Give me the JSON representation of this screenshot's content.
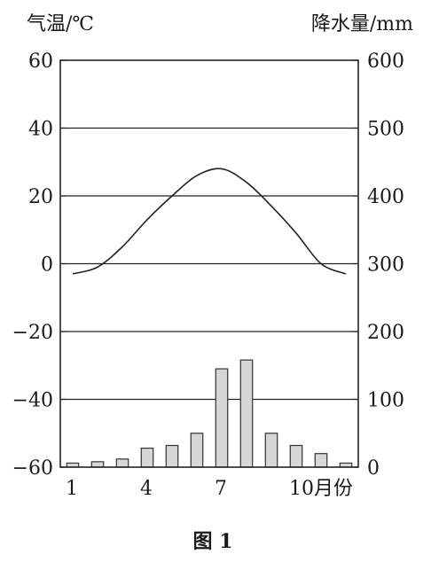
{
  "chart_data": {
    "type": "bar+line",
    "left_axis": {
      "label": "气温/℃",
      "range": [
        -60,
        60
      ],
      "ticks": [
        "60",
        "40",
        "20",
        "0",
        "−20",
        "−40",
        "−60"
      ]
    },
    "right_axis": {
      "label": "降水量/mm",
      "range": [
        0,
        600
      ],
      "ticks": [
        "600",
        "500",
        "400",
        "300",
        "200",
        "100",
        "0"
      ]
    },
    "x_axis": {
      "tick_labels": [
        "1",
        "4",
        "7",
        "10月份"
      ]
    },
    "categories": [
      1,
      2,
      3,
      4,
      5,
      6,
      7,
      8,
      9,
      10,
      11,
      12
    ],
    "series": [
      {
        "kind": "temperature",
        "values": [
          -3,
          -1,
          5,
          13,
          20,
          26,
          28,
          24,
          17,
          9,
          0,
          -3
        ]
      },
      {
        "kind": "precipitation",
        "values": [
          6,
          8,
          12,
          28,
          32,
          50,
          145,
          158,
          50,
          32,
          20,
          6
        ]
      }
    ],
    "grid": "horizontal"
  },
  "caption": "图 1"
}
